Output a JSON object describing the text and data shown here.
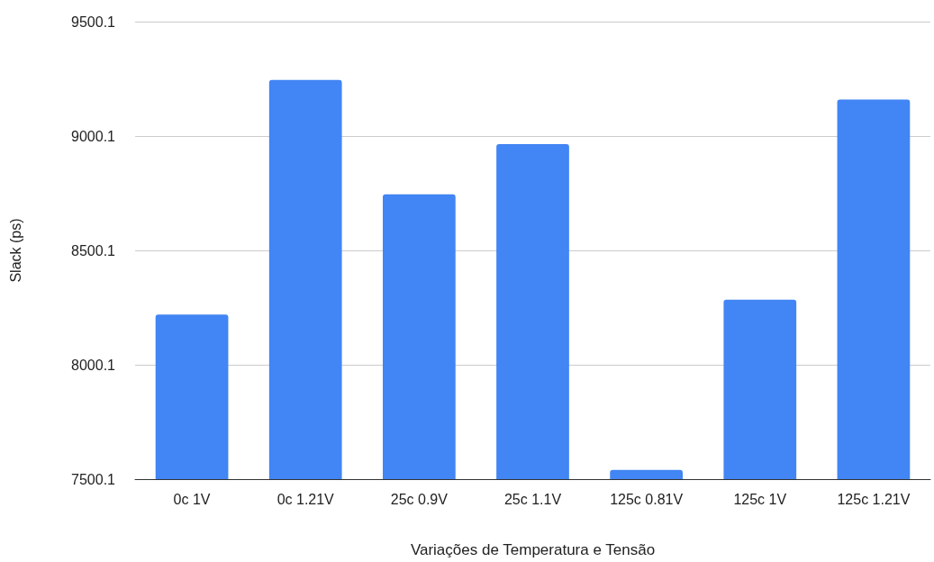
{
  "chart_data": {
    "type": "bar",
    "xlabel": "Variações de Temperatura e Tensão",
    "ylabel": "Slack (ps)",
    "categories": [
      "0c 1V",
      "0c 1.21V",
      "25c 0.9V",
      "25c 1.1V",
      "125c 0.81V",
      "125c 1V",
      "125c 1.21V"
    ],
    "values": [
      8220,
      9245,
      8745,
      8965,
      7540,
      8285,
      9160
    ],
    "color": "#4285f4",
    "ylim": [
      7500.1,
      9500.1
    ],
    "yticks": [
      7500.1,
      8000.1,
      8500.1,
      9000.1,
      9500.1
    ],
    "grid": "y"
  }
}
